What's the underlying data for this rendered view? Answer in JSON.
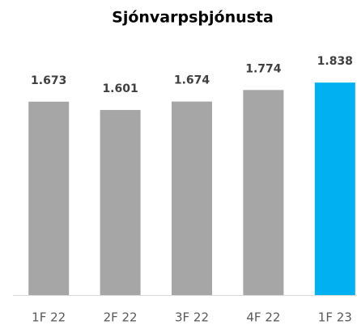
{
  "chart_data": {
    "type": "bar",
    "title": "Sjónvarpsþjónusta",
    "categories": [
      "1F 22",
      "2F 22",
      "3F 22",
      "4F 22",
      "1F 23"
    ],
    "values": [
      1.673,
      1.601,
      1.674,
      1.774,
      1.838
    ],
    "colors": [
      "#a6a6a6",
      "#a6a6a6",
      "#a6a6a6",
      "#a6a6a6",
      "#00b0f0"
    ],
    "ylim": [
      0,
      2
    ]
  }
}
